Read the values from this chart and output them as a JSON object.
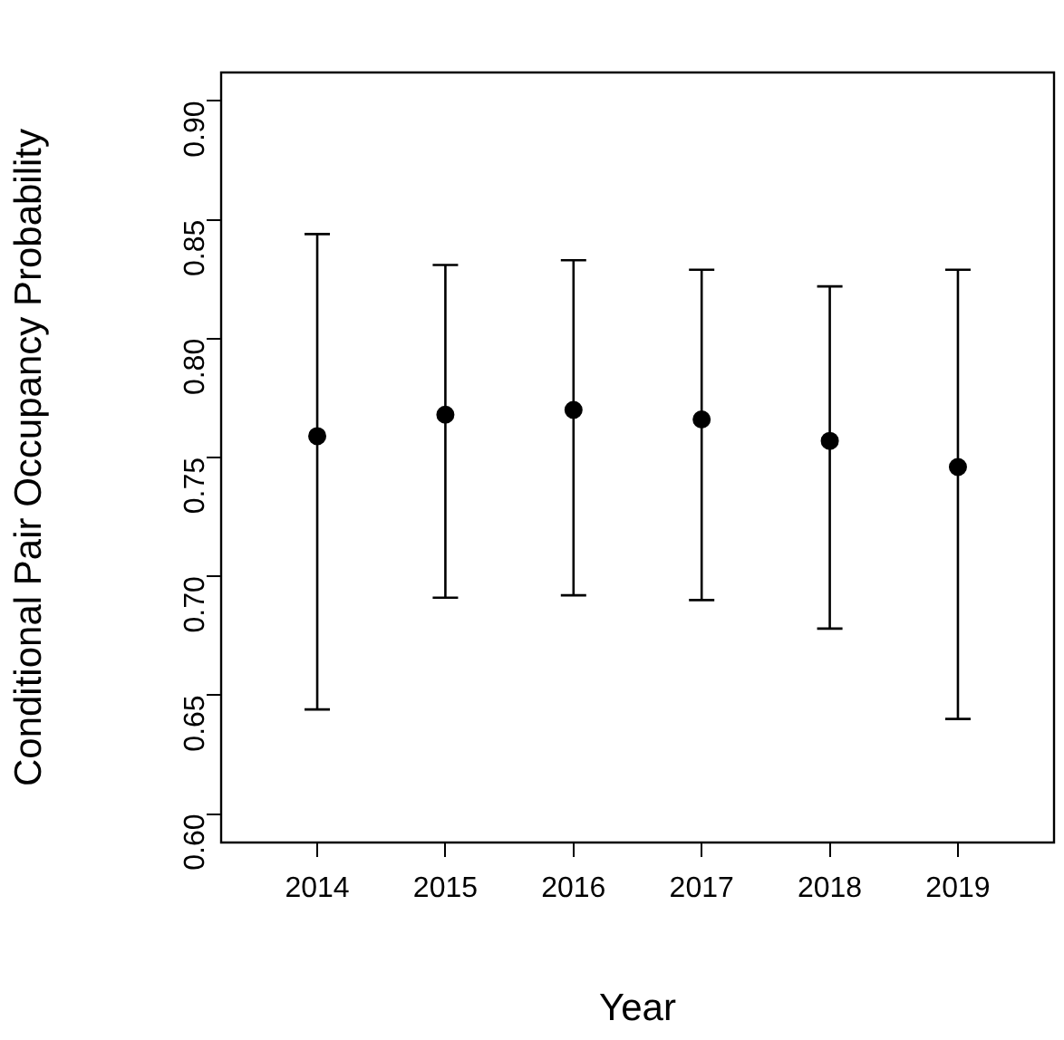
{
  "chart_data": {
    "type": "scatter",
    "xlabel": "Year",
    "ylabel": "Conditional Pair Occupancy Probability",
    "x": [
      2014,
      2015,
      2016,
      2017,
      2018,
      2019
    ],
    "values": [
      0.759,
      0.768,
      0.77,
      0.766,
      0.757,
      0.746
    ],
    "errors": [
      [
        0.644,
        0.844
      ],
      [
        0.691,
        0.831
      ],
      [
        0.692,
        0.833
      ],
      [
        0.69,
        0.829
      ],
      [
        0.678,
        0.822
      ],
      [
        0.64,
        0.829
      ]
    ],
    "color": "#000000",
    "marker": "circle",
    "xlim": [
      2013.25,
      2019.75
    ],
    "xticks": [
      2014,
      2015,
      2016,
      2017,
      2018,
      2019
    ],
    "ylim": [
      0.588,
      0.912
    ],
    "yticks": [
      {
        "value": 0.6,
        "label": "0.60"
      },
      {
        "value": 0.65,
        "label": "0.65"
      },
      {
        "value": 0.7,
        "label": "0.70"
      },
      {
        "value": 0.75,
        "label": "0.75"
      },
      {
        "value": 0.8,
        "label": "0.80"
      },
      {
        "value": 0.85,
        "label": "0.85"
      },
      {
        "value": 0.9,
        "label": "0.90"
      }
    ],
    "grid": false
  }
}
